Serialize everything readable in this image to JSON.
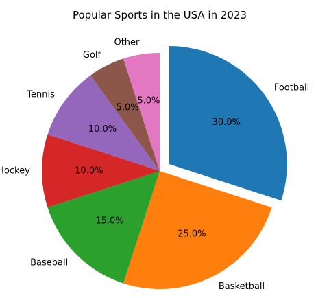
{
  "chart_data": {
    "type": "pie",
    "title": "Popular Sports in the USA in 2023",
    "categories": [
      "Football",
      "Basketball",
      "Baseball",
      "Hockey",
      "Tennis",
      "Golf",
      "Other"
    ],
    "values": [
      30,
      25,
      15,
      10,
      10,
      5,
      5
    ],
    "percent_labels": [
      "30.0%",
      "25.0%",
      "15.0%",
      "10.0%",
      "10.0%",
      "5.0%",
      "5.0%"
    ],
    "colors": [
      "#1f77b4",
      "#ff7f0e",
      "#2ca02c",
      "#d62728",
      "#9467bd",
      "#8c564b",
      "#e377c2"
    ],
    "start_angle_deg": 90,
    "direction": "clockwise",
    "exploded": [
      "Football"
    ],
    "legend": false
  }
}
